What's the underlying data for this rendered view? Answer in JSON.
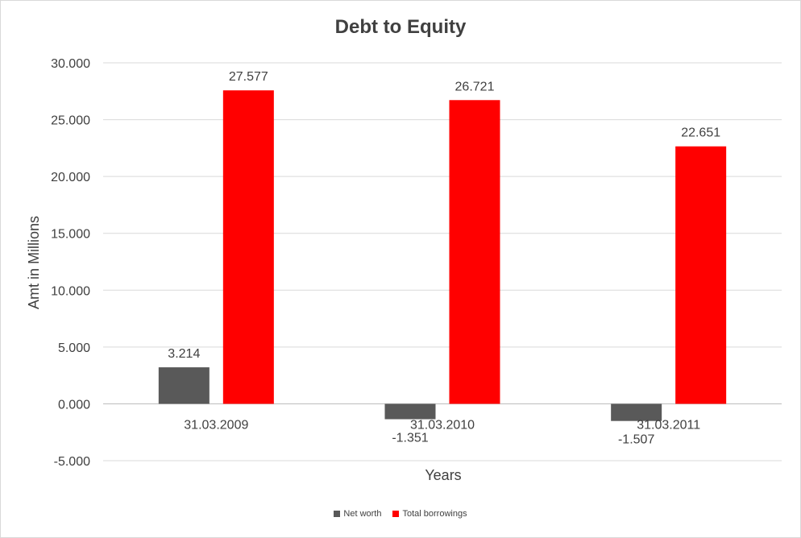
{
  "chart_data": {
    "type": "bar",
    "title": "Debt to Equity",
    "xlabel": "Years",
    "ylabel": "Amt in Millions",
    "categories": [
      "31.03.2009",
      "31.03.2010",
      "31.03.2011"
    ],
    "series": [
      {
        "name": "Net worth",
        "color": "#595959",
        "values": [
          3.214,
          -1.351,
          -1.507
        ],
        "labels": [
          "3.214",
          "-1.351",
          "-1.507"
        ]
      },
      {
        "name": "Total borrowings",
        "color": "#ff0000",
        "values": [
          27.577,
          26.721,
          22.651
        ],
        "labels": [
          "27.577",
          "26.721",
          "22.651"
        ]
      }
    ],
    "ylim": [
      -5,
      30
    ],
    "yticks": [
      30,
      25,
      20,
      15,
      10,
      5,
      0,
      -5
    ],
    "ytick_labels": [
      "30.000",
      "25.000",
      "20.000",
      "15.000",
      "10.000",
      "5.000",
      "0.000",
      "-5.000"
    ],
    "grid": true,
    "legend_position": "bottom"
  }
}
